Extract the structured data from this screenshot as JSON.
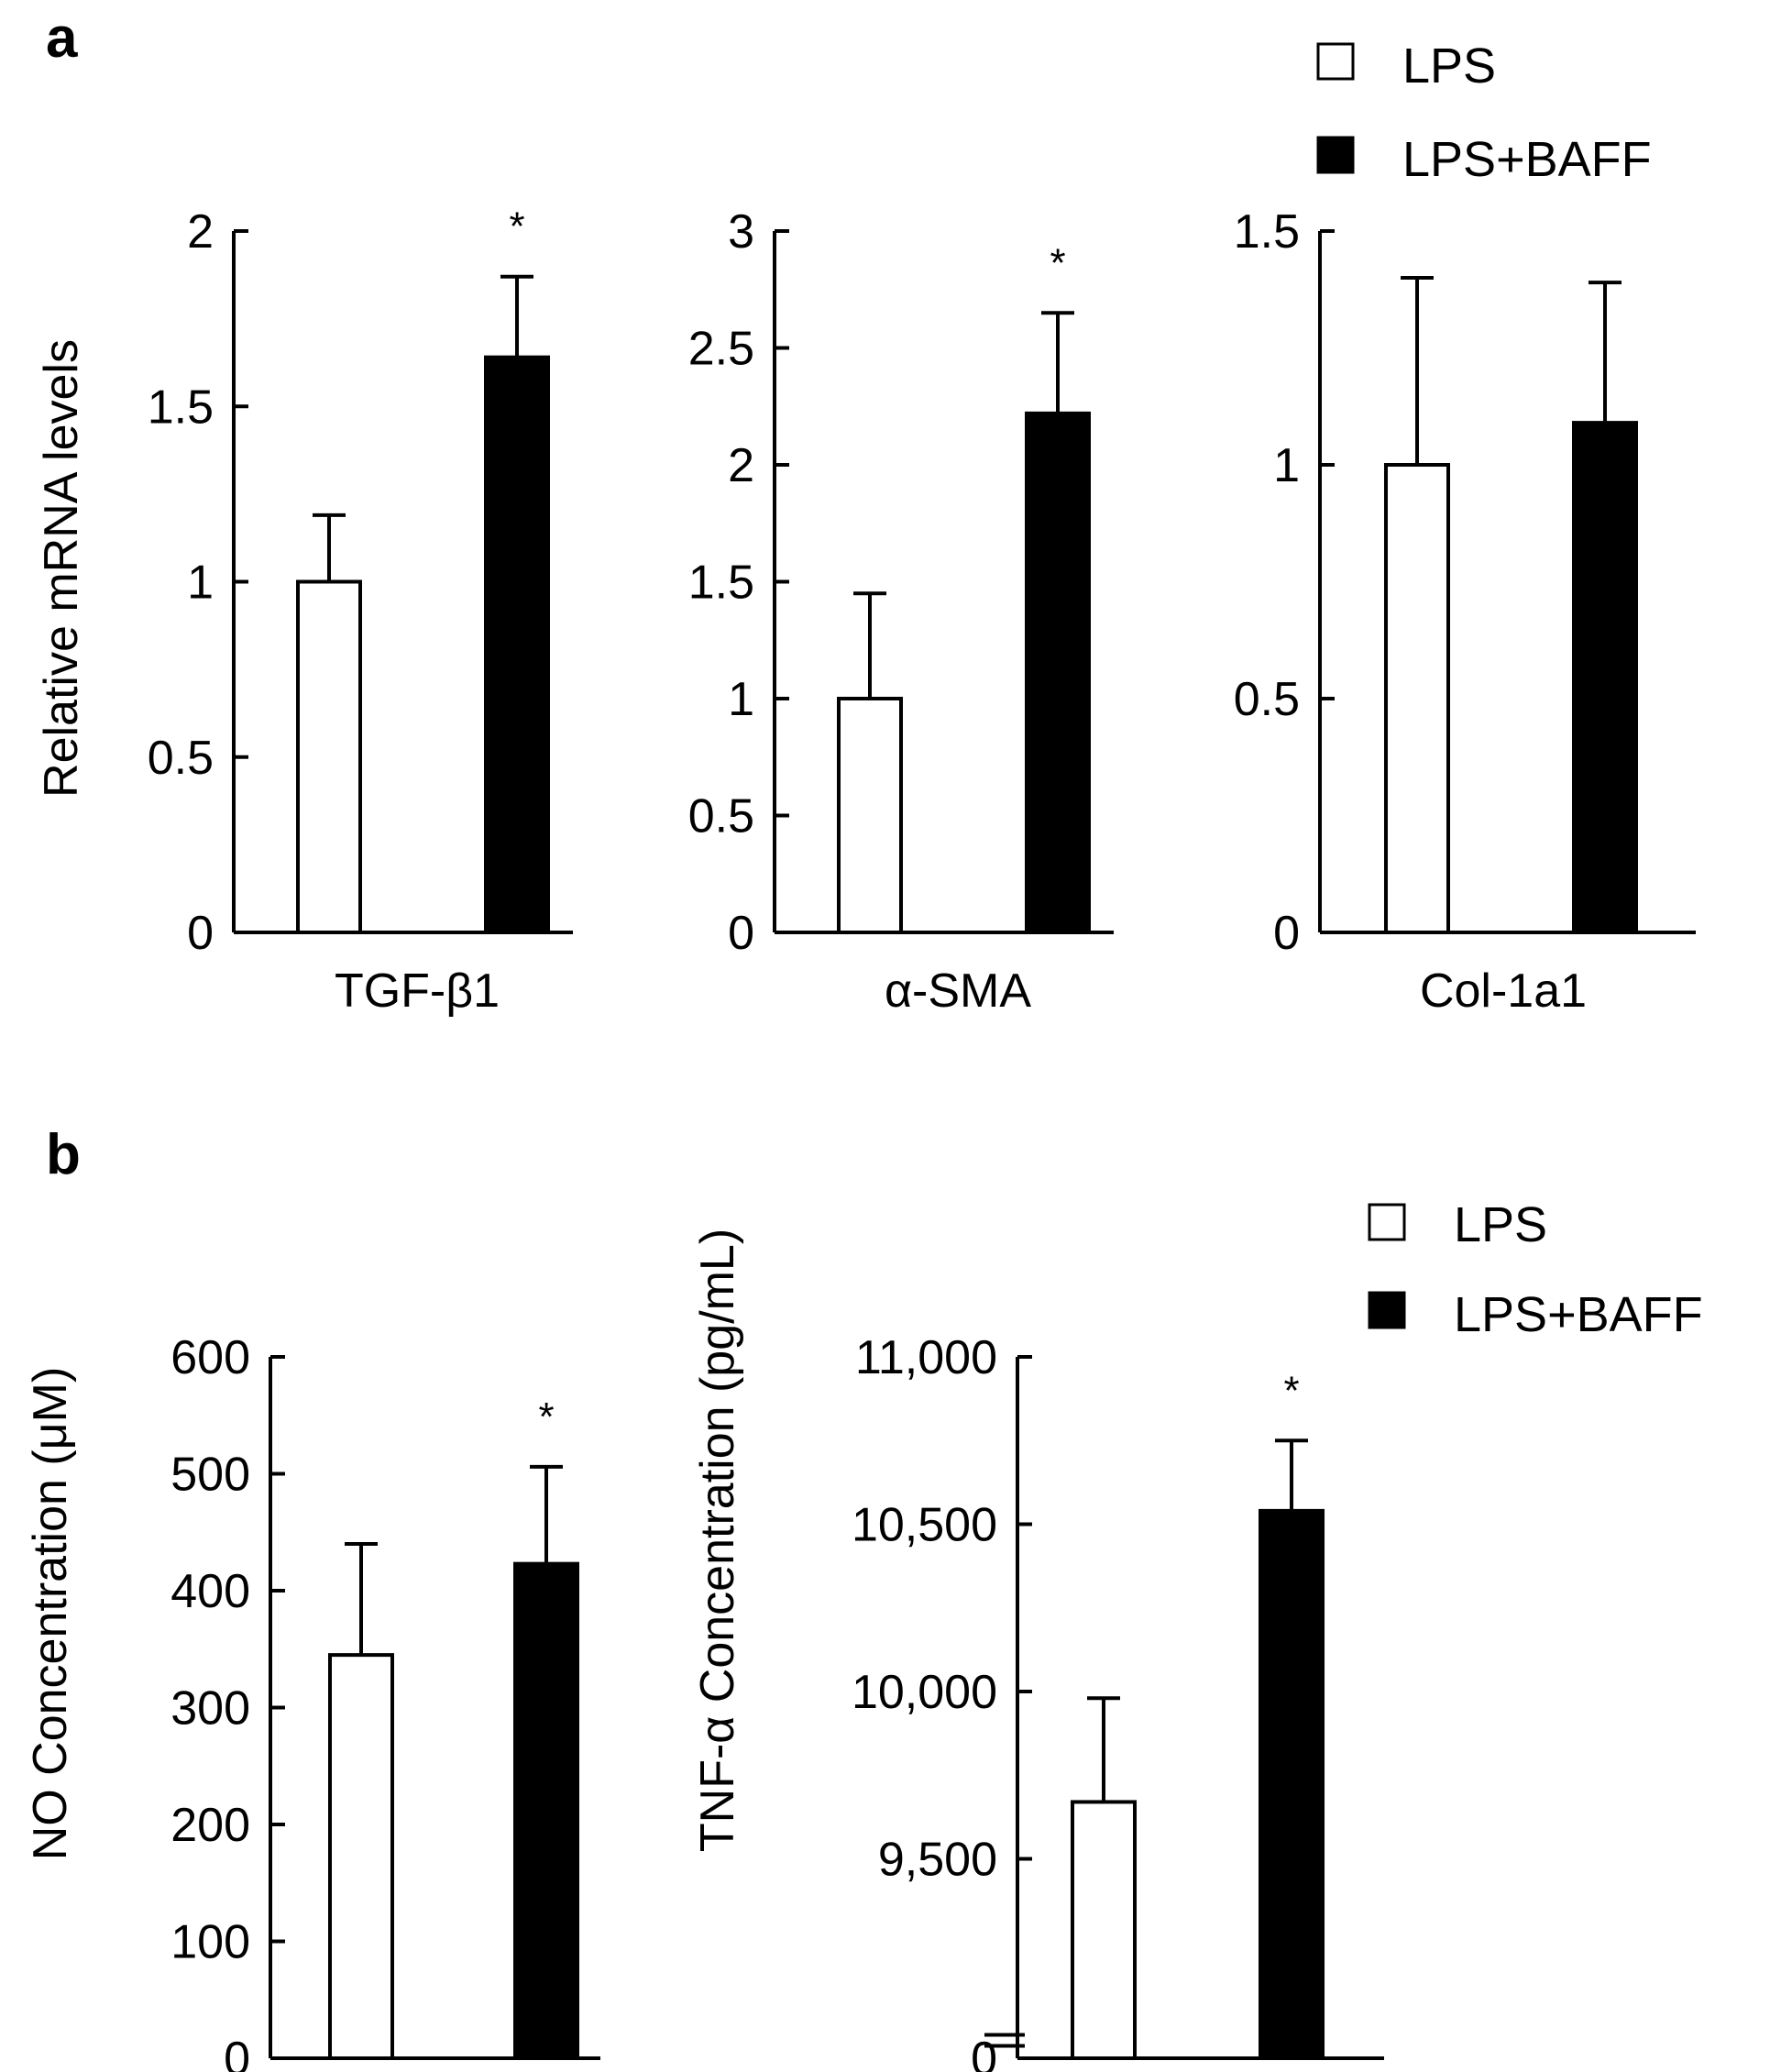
{
  "panel_a": {
    "label": "a",
    "ylabel": "Relative mRNA levels",
    "legend": [
      "LPS",
      "LPS+BAFF"
    ]
  },
  "panel_b": {
    "label": "b",
    "legend": [
      "LPS",
      "LPS+BAFF"
    ]
  },
  "colors": {
    "LPS": "#ffffff",
    "LPS+BAFF": "#000000",
    "axis": "#000000"
  },
  "chart_data": [
    {
      "type": "bar",
      "panel": "a",
      "xlabel": "TGF-β1",
      "ylabel": "Relative mRNA levels",
      "ylim": [
        0,
        2
      ],
      "yticks": [
        0,
        0.5,
        1,
        1.5,
        2
      ],
      "ytick_labels": [
        "0",
        "0.5",
        "1",
        "1.5",
        "2"
      ],
      "series": [
        {
          "name": "LPS",
          "value": 1.0,
          "error": 0.19,
          "significant": false
        },
        {
          "name": "LPS+BAFF",
          "value": 1.64,
          "error": 0.23,
          "significant": true
        }
      ],
      "annotation": "*"
    },
    {
      "type": "bar",
      "panel": "a",
      "xlabel": "α-SMA",
      "ylim": [
        0,
        3
      ],
      "yticks": [
        0,
        0.5,
        1,
        1.5,
        2,
        2.5,
        3
      ],
      "ytick_labels": [
        "0",
        "0.5",
        "1",
        "1.5",
        "2",
        "2.5",
        "3"
      ],
      "series": [
        {
          "name": "LPS",
          "value": 1.0,
          "error": 0.45,
          "significant": false
        },
        {
          "name": "LPS+BAFF",
          "value": 2.22,
          "error": 0.43,
          "significant": true
        }
      ],
      "annotation": "*"
    },
    {
      "type": "bar",
      "panel": "a",
      "xlabel": "Col-1a1",
      "ylim": [
        0,
        1.5
      ],
      "yticks": [
        0,
        0.5,
        1,
        1.5
      ],
      "ytick_labels": [
        "0",
        "0.5",
        "1",
        "1.5"
      ],
      "series": [
        {
          "name": "LPS",
          "value": 1.0,
          "error": 0.4,
          "significant": false
        },
        {
          "name": "LPS+BAFF",
          "value": 1.09,
          "error": 0.3,
          "significant": false
        }
      ],
      "annotation": ""
    },
    {
      "type": "bar",
      "panel": "b",
      "xlabel": "",
      "ylabel": "NO Concentration (μM)",
      "ylim": [
        0,
        600
      ],
      "yticks": [
        0,
        100,
        200,
        300,
        400,
        500,
        600
      ],
      "ytick_labels": [
        "0",
        "100",
        "200",
        "300",
        "400",
        "500",
        "600"
      ],
      "series": [
        {
          "name": "LPS",
          "value": 345,
          "error": 95,
          "significant": false
        },
        {
          "name": "LPS+BAFF",
          "value": 423,
          "error": 83,
          "significant": true
        }
      ],
      "annotation": "*"
    },
    {
      "type": "bar",
      "panel": "b",
      "xlabel": "",
      "ylabel": "TNF-α Concentration (pg/mL)",
      "axis_break": true,
      "ylim": [
        9000,
        11000
      ],
      "yticks": [
        9500,
        10000,
        10500,
        11000
      ],
      "ytick_labels": [
        "9,500",
        "10,000",
        "10,500",
        "11,000"
      ],
      "zero_label": "0",
      "series": [
        {
          "name": "LPS",
          "value": 9670,
          "error": 310,
          "significant": false
        },
        {
          "name": "LPS+BAFF",
          "value": 10540,
          "error": 210,
          "significant": true
        }
      ],
      "annotation": "*"
    }
  ]
}
